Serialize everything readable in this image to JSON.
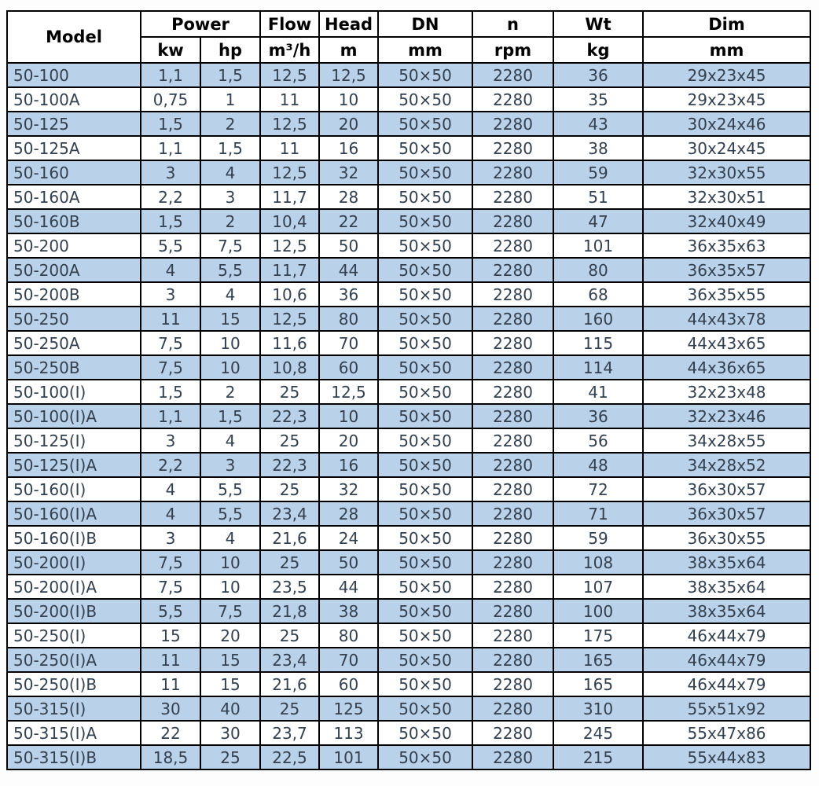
{
  "table": {
    "header": {
      "model": "Model",
      "power": "Power",
      "power_kw": "kw",
      "power_hp": "hp",
      "flow": "Flow",
      "flow_unit": "m³/h",
      "head": "Head",
      "head_unit": "m",
      "dn": "DN",
      "dn_unit": "mm",
      "n": "n",
      "n_unit": "rpm",
      "wt": "Wt",
      "wt_unit": "kg",
      "dim": "Dim",
      "dim_unit": "mm"
    },
    "rows": [
      {
        "model": "50-100",
        "kw": "1,1",
        "hp": "1,5",
        "flow": "12,5",
        "head": "12,5",
        "dn": "50×50",
        "n": "2280",
        "wt": "36",
        "dim": "29x23x45"
      },
      {
        "model": "50-100A",
        "kw": "0,75",
        "hp": "1",
        "flow": "11",
        "head": "10",
        "dn": "50×50",
        "n": "2280",
        "wt": "35",
        "dim": "29x23x45"
      },
      {
        "model": "50-125",
        "kw": "1,5",
        "hp": "2",
        "flow": "12,5",
        "head": "20",
        "dn": "50×50",
        "n": "2280",
        "wt": "43",
        "dim": "30x24x46"
      },
      {
        "model": "50-125A",
        "kw": "1,1",
        "hp": "1,5",
        "flow": "11",
        "head": "16",
        "dn": "50×50",
        "n": "2280",
        "wt": "38",
        "dim": "30x24x45"
      },
      {
        "model": "50-160",
        "kw": "3",
        "hp": "4",
        "flow": "12,5",
        "head": "32",
        "dn": "50×50",
        "n": "2280",
        "wt": "59",
        "dim": "32x30x55"
      },
      {
        "model": "50-160A",
        "kw": "2,2",
        "hp": "3",
        "flow": "11,7",
        "head": "28",
        "dn": "50×50",
        "n": "2280",
        "wt": "51",
        "dim": "32x30x51"
      },
      {
        "model": "50-160B",
        "kw": "1,5",
        "hp": "2",
        "flow": "10,4",
        "head": "22",
        "dn": "50×50",
        "n": "2280",
        "wt": "47",
        "dim": "32x40x49"
      },
      {
        "model": "50-200",
        "kw": "5,5",
        "hp": "7,5",
        "flow": "12,5",
        "head": "50",
        "dn": "50×50",
        "n": "2280",
        "wt": "101",
        "dim": "36x35x63"
      },
      {
        "model": "50-200A",
        "kw": "4",
        "hp": "5,5",
        "flow": "11,7",
        "head": "44",
        "dn": "50×50",
        "n": "2280",
        "wt": "80",
        "dim": "36x35x57"
      },
      {
        "model": "50-200B",
        "kw": "3",
        "hp": "4",
        "flow": "10,6",
        "head": "36",
        "dn": "50×50",
        "n": "2280",
        "wt": "68",
        "dim": "36x35x55"
      },
      {
        "model": "50-250",
        "kw": "11",
        "hp": "15",
        "flow": "12,5",
        "head": "80",
        "dn": "50×50",
        "n": "2280",
        "wt": "160",
        "dim": "44x43x78"
      },
      {
        "model": "50-250A",
        "kw": "7,5",
        "hp": "10",
        "flow": "11,6",
        "head": "70",
        "dn": "50×50",
        "n": "2280",
        "wt": "115",
        "dim": "44x43x65"
      },
      {
        "model": "50-250B",
        "kw": "7,5",
        "hp": "10",
        "flow": "10,8",
        "head": "60",
        "dn": "50×50",
        "n": "2280",
        "wt": "114",
        "dim": "44x36x65"
      },
      {
        "model": "50-100(I)",
        "kw": "1,5",
        "hp": "2",
        "flow": "25",
        "head": "12,5",
        "dn": "50×50",
        "n": "2280",
        "wt": "41",
        "dim": "32x23x48"
      },
      {
        "model": "50-100(I)A",
        "kw": "1,1",
        "hp": "1,5",
        "flow": "22,3",
        "head": "10",
        "dn": "50×50",
        "n": "2280",
        "wt": "36",
        "dim": "32x23x46"
      },
      {
        "model": "50-125(I)",
        "kw": "3",
        "hp": "4",
        "flow": "25",
        "head": "20",
        "dn": "50×50",
        "n": "2280",
        "wt": "56",
        "dim": "34x28x55"
      },
      {
        "model": "50-125(I)A",
        "kw": "2,2",
        "hp": "3",
        "flow": "22,3",
        "head": "16",
        "dn": "50×50",
        "n": "2280",
        "wt": "48",
        "dim": "34x28x52"
      },
      {
        "model": "50-160(I)",
        "kw": "4",
        "hp": "5,5",
        "flow": "25",
        "head": "32",
        "dn": "50×50",
        "n": "2280",
        "wt": "72",
        "dim": "36x30x57"
      },
      {
        "model": "50-160(I)A",
        "kw": "4",
        "hp": "5,5",
        "flow": "23,4",
        "head": "28",
        "dn": "50×50",
        "n": "2280",
        "wt": "71",
        "dim": "36x30x57"
      },
      {
        "model": "50-160(I)B",
        "kw": "3",
        "hp": "4",
        "flow": "21,6",
        "head": "24",
        "dn": "50×50",
        "n": "2280",
        "wt": "59",
        "dim": "36x30x55"
      },
      {
        "model": "50-200(I)",
        "kw": "7,5",
        "hp": "10",
        "flow": "25",
        "head": "50",
        "dn": "50×50",
        "n": "2280",
        "wt": "108",
        "dim": "38x35x64"
      },
      {
        "model": "50-200(I)A",
        "kw": "7,5",
        "hp": "10",
        "flow": "23,5",
        "head": "44",
        "dn": "50×50",
        "n": "2280",
        "wt": "107",
        "dim": "38x35x64"
      },
      {
        "model": "50-200(I)B",
        "kw": "5,5",
        "hp": "7,5",
        "flow": "21,8",
        "head": "38",
        "dn": "50×50",
        "n": "2280",
        "wt": "100",
        "dim": "38x35x64"
      },
      {
        "model": "50-250(I)",
        "kw": "15",
        "hp": "20",
        "flow": "25",
        "head": "80",
        "dn": "50×50",
        "n": "2280",
        "wt": "175",
        "dim": "46x44x79"
      },
      {
        "model": "50-250(I)A",
        "kw": "11",
        "hp": "15",
        "flow": "23,4",
        "head": "70",
        "dn": "50×50",
        "n": "2280",
        "wt": "165",
        "dim": "46x44x79"
      },
      {
        "model": "50-250(I)B",
        "kw": "11",
        "hp": "15",
        "flow": "21,6",
        "head": "60",
        "dn": "50×50",
        "n": "2280",
        "wt": "165",
        "dim": "46x44x79"
      },
      {
        "model": "50-315(I)",
        "kw": "30",
        "hp": "40",
        "flow": "25",
        "head": "125",
        "dn": "50×50",
        "n": "2280",
        "wt": "310",
        "dim": "55x51x92"
      },
      {
        "model": "50-315(I)A",
        "kw": "22",
        "hp": "30",
        "flow": "23,7",
        "head": "113",
        "dn": "50×50",
        "n": "2280",
        "wt": "245",
        "dim": "55x47x86"
      },
      {
        "model": "50-315(I)B",
        "kw": "18,5",
        "hp": "25",
        "flow": "22,5",
        "head": "101",
        "dn": "50×50",
        "n": "2280",
        "wt": "215",
        "dim": "55x44x83"
      }
    ]
  },
  "colors": {
    "row_alt_blue": "#B9D1E9",
    "row_white": "#FFFFFF",
    "border": "#000000",
    "data_text": "#33404F",
    "header_text": "#000000"
  }
}
